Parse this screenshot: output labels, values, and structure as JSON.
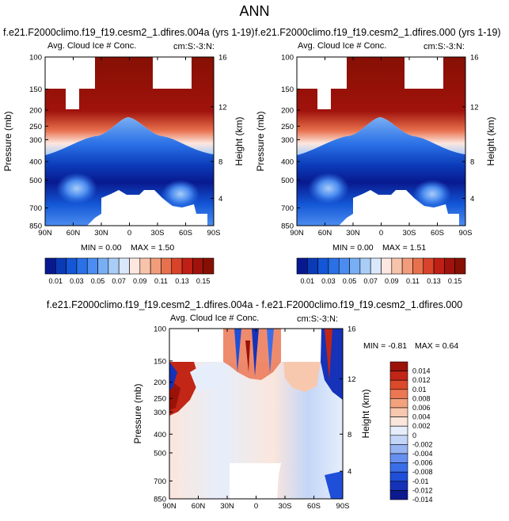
{
  "page_title": "ANN",
  "colors": {
    "levels": [
      "#08198f",
      "#0b3ab7",
      "#1356d6",
      "#2a70e6",
      "#4b8cf0",
      "#78aef4",
      "#a9cdf7",
      "#d9e8fb",
      "#fde7df",
      "#f7c3ab",
      "#f19c7a",
      "#e8714d",
      "#d9432a",
      "#bf1f15",
      "#a0120c",
      "#861003"
    ],
    "diff_levels": [
      "#0d1a8f",
      "#1532b8",
      "#1f4fd8",
      "#3a6ee8",
      "#6690ef",
      "#97b5f3",
      "#c3d6f8",
      "#e6eefb",
      "#fbe6dc",
      "#f8c8ae",
      "#f3a27e",
      "#ec7753",
      "#db4a2a",
      "#c12616",
      "#9b1208"
    ],
    "fill_value": "#ffffff"
  },
  "chart_data": [
    {
      "type": "contour",
      "id": "panel-left",
      "case_title": "f.e21.F2000climo.f19_f19.cesm2_1.dfires.004a (yrs 1-19)",
      "variable_label": "Avg. Cloud Ice # Conc.",
      "region_label": "cm:S:-3:N:",
      "ylabel": "Pressure (mb)",
      "ylabel_right": "Height (km)",
      "x_ticks": [
        "90N",
        "60N",
        "30N",
        "0",
        "30S",
        "60S",
        "90S"
      ],
      "y_ticks": [
        "100",
        "150",
        "200",
        "250",
        "300",
        "400",
        "500",
        "700",
        "850"
      ],
      "y_ticks_right": [
        "16",
        "12",
        "8",
        "4"
      ],
      "min_text": "MIN =  0.00",
      "max_text": "MAX =  1.50",
      "colorbar_labels": [
        "0.01",
        "0.03",
        "0.05",
        "0.07",
        "0.09",
        "0.11",
        "0.13",
        "0.15"
      ]
    },
    {
      "type": "contour",
      "id": "panel-right",
      "case_title": "f.e21.F2000climo.f19_f19.cesm2_1.dfires.000 (yrs 1-19)",
      "variable_label": "Avg. Cloud Ice # Conc.",
      "region_label": "cm:S:-3:N:",
      "ylabel": "Pressure (mb)",
      "ylabel_right": "Height (km)",
      "x_ticks": [
        "90N",
        "60N",
        "30N",
        "0",
        "30S",
        "60S",
        "90S"
      ],
      "y_ticks": [
        "100",
        "150",
        "200",
        "250",
        "300",
        "400",
        "500",
        "700",
        "850"
      ],
      "y_ticks_right": [
        "16",
        "12",
        "8",
        "4"
      ],
      "min_text": "MIN =  0.00",
      "max_text": "MAX =  1.51",
      "colorbar_labels": [
        "0.01",
        "0.03",
        "0.05",
        "0.07",
        "0.09",
        "0.11",
        "0.13",
        "0.15"
      ]
    },
    {
      "type": "contour-difference",
      "id": "panel-diff",
      "case_title": "f.e21.F2000climo.f19_f19.cesm2_1.dfires.004a - f.e21.F2000climo.f19_f19.cesm2_1.dfires.000",
      "variable_label": "Avg. Cloud Ice # Conc.",
      "region_label": "cm:S:-3:N:",
      "ylabel": "Pressure (mb)",
      "ylabel_right": "Height (km)",
      "x_ticks": [
        "90N",
        "60N",
        "30N",
        "0",
        "30S",
        "60S",
        "90S"
      ],
      "y_ticks": [
        "100",
        "150",
        "200",
        "250",
        "300",
        "400",
        "500",
        "700",
        "850"
      ],
      "y_ticks_right": [
        "16",
        "12",
        "8",
        "4"
      ],
      "min_text": "MIN = -0.81",
      "max_text": "MAX =  0.64",
      "colorbar_labels": [
        "0.014",
        "0.012",
        "0.01",
        "0.008",
        "0.006",
        "0.004",
        "0.002",
        "0",
        "-0.002",
        "-0.004",
        "-0.006",
        "-0.008",
        "-0.01",
        "-0.012",
        "-0.014"
      ]
    }
  ]
}
